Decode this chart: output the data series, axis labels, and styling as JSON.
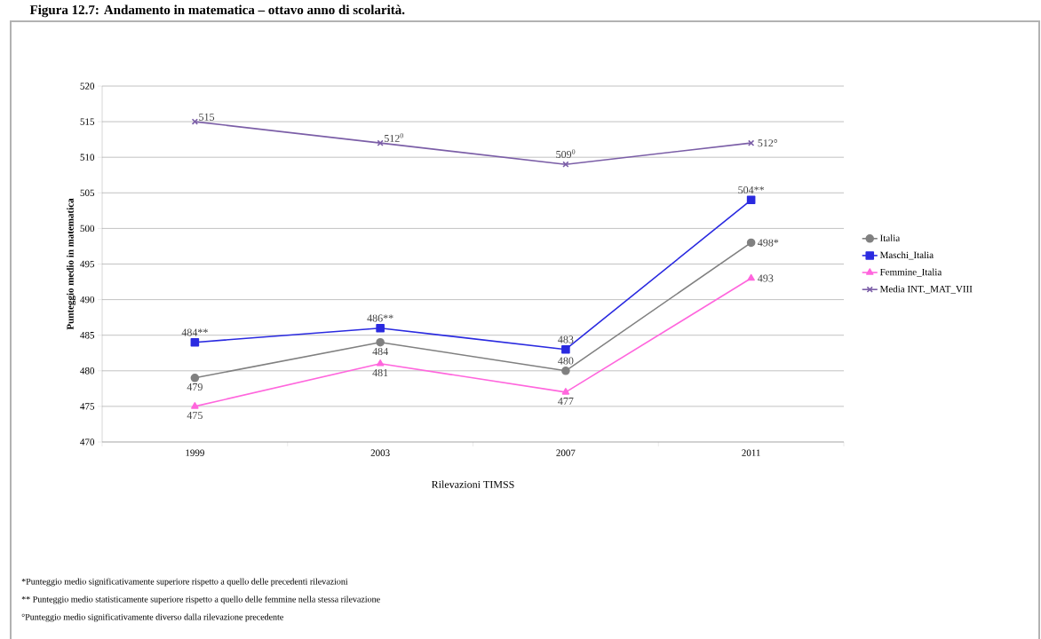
{
  "chart_data": {
    "type": "line",
    "title": "Figura 12.7: Andamento in matematica – ottavo anno di scolarità.",
    "xlabel": "Rilevazioni TIMSS",
    "ylabel": "Punteggio medio in matematica",
    "categories": [
      "1999",
      "2003",
      "2007",
      "2011"
    ],
    "series": [
      {
        "name": "Italia",
        "color": "#808080",
        "marker": "circle",
        "values": [
          479,
          484,
          480,
          498
        ],
        "value_labels": [
          "479",
          "484",
          "480",
          "498*"
        ]
      },
      {
        "name": "Maschi_Italia",
        "color": "#2a2ae0",
        "marker": "square",
        "values": [
          484,
          486,
          483,
          504
        ],
        "value_labels": [
          "484**",
          "486**",
          "483",
          "504**"
        ]
      },
      {
        "name": "Femmine_Italia",
        "color": "#ff66dd",
        "marker": "triangle",
        "values": [
          475,
          481,
          477,
          493
        ],
        "value_labels": [
          "475",
          "481",
          "477",
          "493"
        ]
      },
      {
        "name": "Media INT._MAT_VIII",
        "color": "#7b5ea7",
        "marker": "cross",
        "values": [
          515,
          512,
          509,
          512
        ],
        "value_labels": [
          "515",
          "512$^{0}$",
          "509$^{0}$",
          "512°"
        ]
      }
    ],
    "ylim": [
      470,
      520
    ],
    "yticks": [
      470,
      475,
      480,
      485,
      490,
      495,
      500,
      505,
      510,
      515,
      520
    ],
    "grid": "y",
    "legend": "right",
    "line_style": "solid",
    "annotations": [
      "*Punteggio medio significativamente superiore rispetto a quello delle precedenti rilevazioni",
      "** Punteggio medio statisticamente superiore rispetto a quello delle femmine nella stessa rilevazione",
      "°Punteggio medio significativamente diverso dalla rilevazione precedente"
    ]
  }
}
